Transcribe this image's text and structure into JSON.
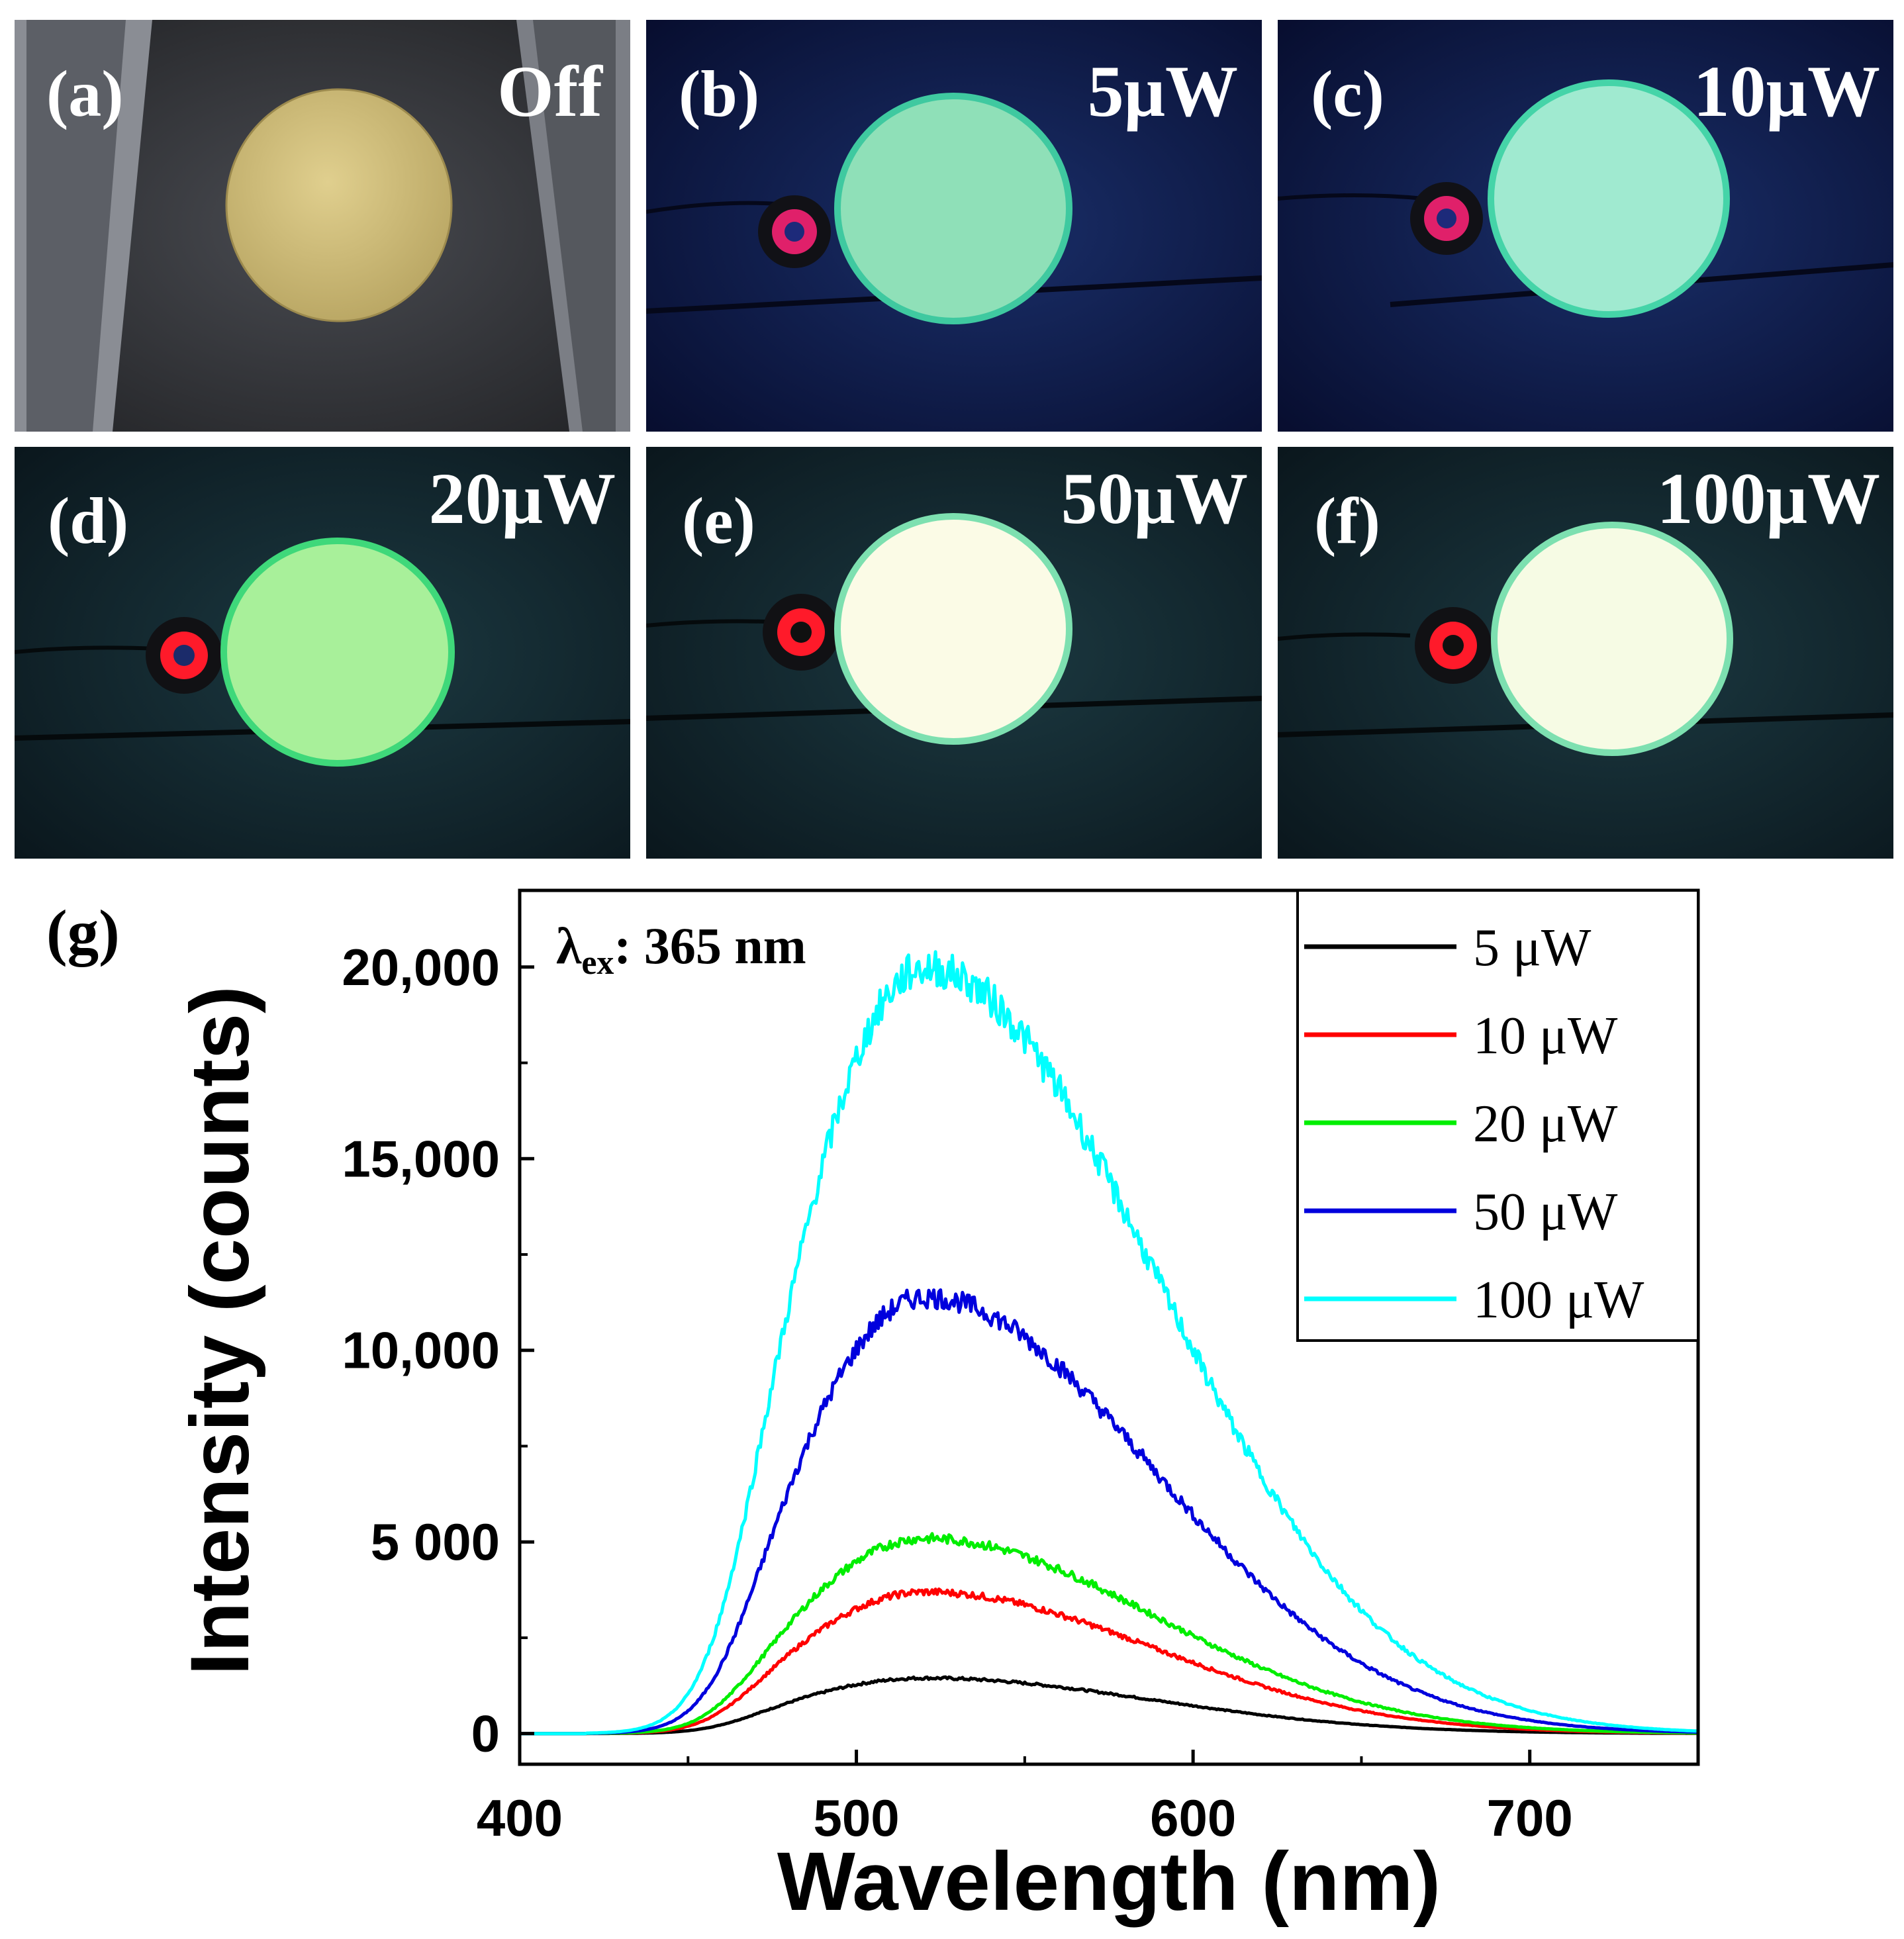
{
  "panels": [
    {
      "label": "(a)",
      "power": "Off",
      "state": "off"
    },
    {
      "label": "(b)",
      "power": "5μW",
      "state": "uv",
      "glow": 0.25
    },
    {
      "label": "(c)",
      "power": "10μW",
      "state": "uv",
      "glow": 0.4
    },
    {
      "label": "(d)",
      "power": "20μW",
      "state": "uv",
      "glow": 0.55
    },
    {
      "label": "(e)",
      "power": "50μW",
      "state": "uv",
      "glow": 0.85
    },
    {
      "label": "(f)",
      "power": "100μW",
      "state": "uv",
      "glow": 0.95
    }
  ],
  "chart_panel_label": "(g)",
  "chart_data": {
    "type": "line",
    "xlabel": "Wavelength (nm)",
    "ylabel": "Intensity (counts)",
    "xlim": [
      400,
      750
    ],
    "ylim": [
      -800,
      22000
    ],
    "xticks": [
      400,
      500,
      600,
      700
    ],
    "yticks": [
      0,
      5000,
      10000,
      15000,
      20000
    ],
    "ytick_labels": [
      "0",
      "5 000",
      "10,000",
      "15,000",
      "20,000"
    ],
    "annotation": {
      "symbol": "λ",
      "subscript": "ex",
      "text": ": 365 nm"
    },
    "legend_position": "top-right",
    "series": [
      {
        "name": "5 μW",
        "color": "#000000",
        "peak": 1450
      },
      {
        "name": "10 μW",
        "color": "#ff0000",
        "peak": 3700
      },
      {
        "name": "20 μW",
        "color": "#00ee00",
        "peak": 5100
      },
      {
        "name": "50 μW",
        "color": "#0000dd",
        "peak": 11400
      },
      {
        "name": "100 μW",
        "color": "#00ffff",
        "peak": 20000
      }
    ]
  }
}
